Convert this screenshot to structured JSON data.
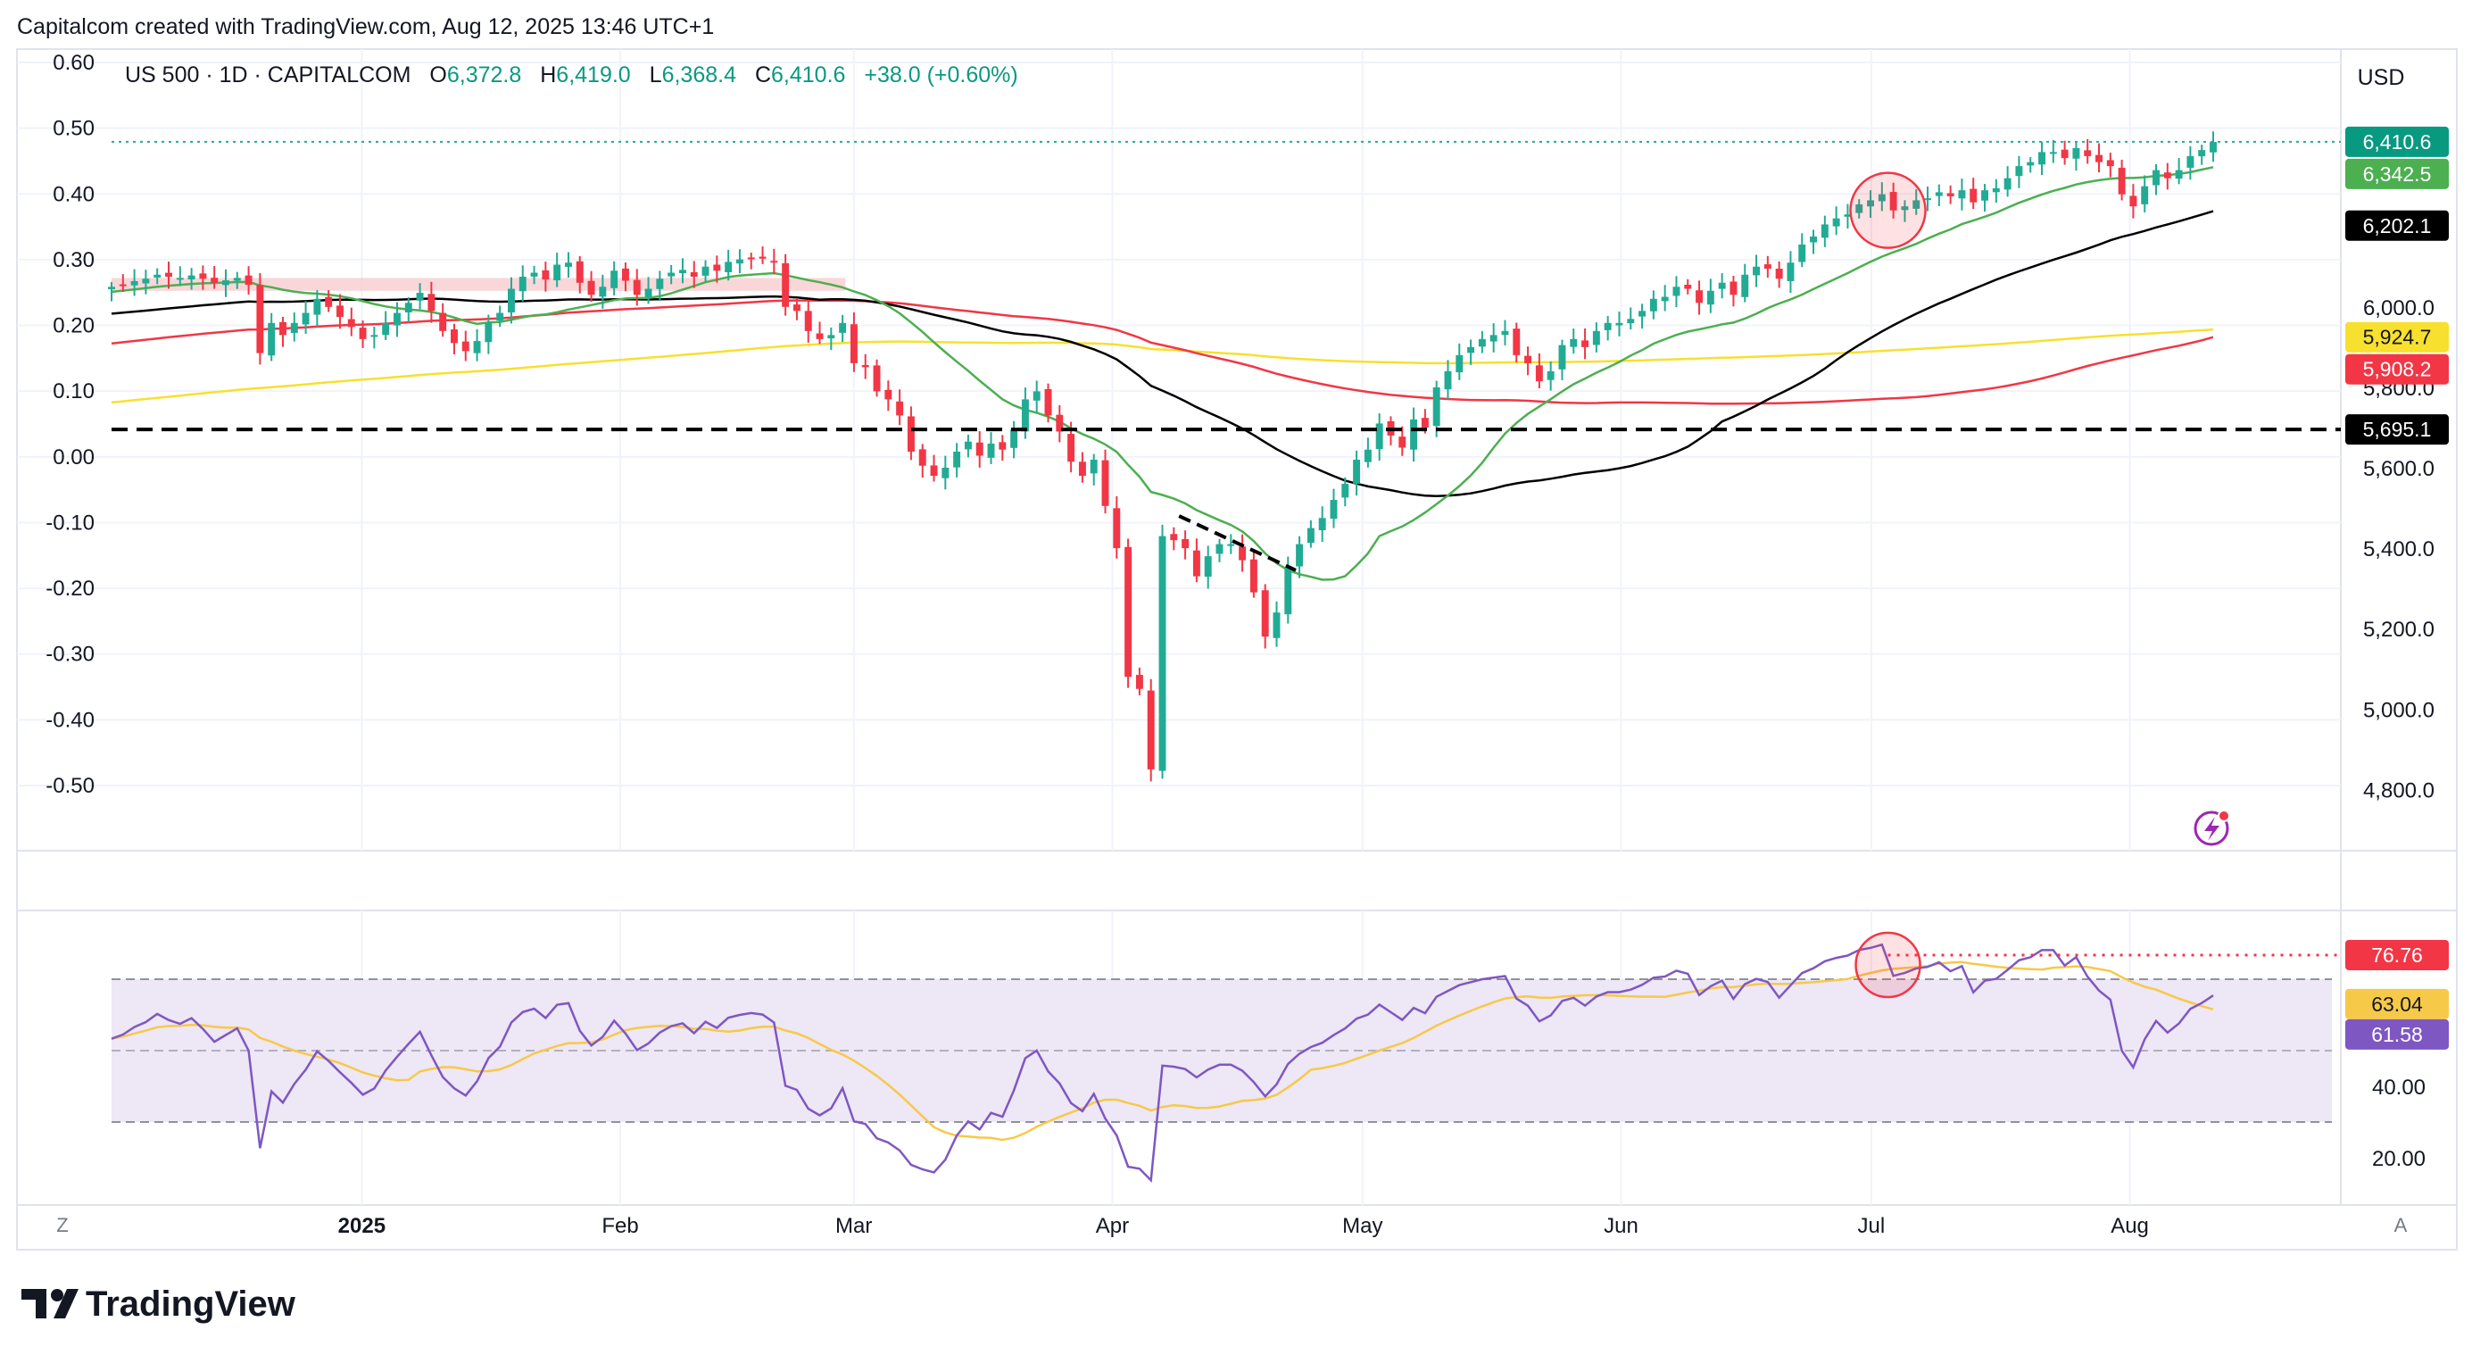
{
  "header": {
    "attribution": "Capitalcom created with TradingView.com, Aug 12, 2025 13:46 UTC+1"
  },
  "legend": {
    "symbol": "US 500 · 1D · CAPITALCOM",
    "o_label": "O",
    "o_value": "6,372.8",
    "h_label": "H",
    "h_value": "6,419.0",
    "l_label": "L",
    "l_value": "6,368.4",
    "c_label": "C",
    "c_value": "6,410.6",
    "change": "+38.0 (+0.60%)"
  },
  "currency": "USD",
  "footer": {
    "brand": "TradingView"
  },
  "buttons": {
    "z_label": "Z",
    "a_label": "A"
  },
  "colors": {
    "up": "#22ab94",
    "down": "#f23645",
    "sma20": "#4caf50",
    "sma50": "#000000",
    "sma100": "#f23645",
    "sma200": "#f7e02e",
    "rsi": "#7e57c2",
    "rsi_ma": "#f7c948",
    "rsi_band": "#ede7f6",
    "zone": "#f8cdd0",
    "accent": "#089981"
  },
  "chart_data": [
    {
      "type": "candlestick",
      "symbol": "US 500",
      "interval": "1D",
      "x_range": [
        "2024-12-02",
        "2025-08-11"
      ],
      "x_ticks": [
        "2025",
        "Feb",
        "Mar",
        "Apr",
        "May",
        "Jun",
        "Jul",
        "Aug"
      ],
      "right_axis": {
        "label": "USD",
        "ticks": [
          "6,000.0",
          "5,800.0",
          "5,600.0",
          "5,400.0",
          "5,200.0",
          "5,000.0",
          "4,800.0"
        ],
        "tick_values": [
          6000,
          5800,
          5600,
          5400,
          5200,
          5000,
          4800
        ],
        "range": [
          4700,
          6580
        ]
      },
      "left_axis": {
        "ticks": [
          "0.60",
          "0.50",
          "0.40",
          "0.30",
          "0.20",
          "0.10",
          "0.00",
          "-0.10",
          "-0.20",
          "-0.30",
          "-0.40",
          "-0.50"
        ],
        "tick_values": [
          0.6,
          0.5,
          0.4,
          0.3,
          0.2,
          0.1,
          0.0,
          -0.1,
          -0.2,
          -0.3,
          -0.4,
          -0.5
        ]
      },
      "price_labels": [
        {
          "text": "6,410.6",
          "value": 6410.6,
          "color": "#089981"
        },
        {
          "text": "6,342.5",
          "value": 6342.5,
          "color": "#4caf50"
        },
        {
          "text": "6,202.1",
          "value": 6202.1,
          "color": "#000000"
        },
        {
          "text": "5,924.7",
          "value": 5924.7,
          "color": "#f7e02e"
        },
        {
          "text": "5,908.2",
          "value": 5908.2,
          "color": "#f23645"
        },
        {
          "text": "5,695.1",
          "value": 5695.1,
          "color": "#000000"
        }
      ],
      "horizontal_lines": [
        {
          "value": 5695.1,
          "style": "dashed",
          "color": "#000000"
        },
        {
          "value": 6410.6,
          "style": "dotted",
          "color": "#22ab94"
        }
      ],
      "zones": [
        {
          "from_date": "2024-12-02",
          "to_date": "2025-02-28",
          "low": 6040,
          "high": 6072,
          "color": "#f8cdd0"
        }
      ],
      "annotations": [
        {
          "type": "circle",
          "date": "2025-07-03",
          "value": 6240
        },
        {
          "type": "dashed-trendline",
          "from": [
            "2025-04-09",
            5480
          ],
          "to": [
            "2025-04-23",
            5345
          ]
        }
      ],
      "closes": [
        6050,
        6055,
        6064,
        6070,
        6080,
        6075,
        6072,
        6078,
        6070,
        6060,
        6066,
        6072,
        6055,
        5885,
        5960,
        5930,
        5960,
        5985,
        6020,
        6000,
        5975,
        5950,
        5920,
        5930,
        5960,
        5985,
        6010,
        6035,
        5990,
        5940,
        5910,
        5890,
        5915,
        5960,
        5985,
        6045,
        6075,
        6085,
        6068,
        6105,
        6110,
        6060,
        6030,
        6050,
        6090,
        6065,
        6030,
        6045,
        6070,
        6085,
        6092,
        6075,
        6100,
        6090,
        6112,
        6118,
        6122,
        6120,
        6110,
        6000,
        5990,
        5940,
        5920,
        5930,
        5960,
        5860,
        5850,
        5790,
        5770,
        5730,
        5640,
        5605,
        5580,
        5600,
        5640,
        5665,
        5630,
        5660,
        5645,
        5695,
        5770,
        5790,
        5730,
        5690,
        5615,
        5580,
        5620,
        5505,
        5400,
        5080,
        5050,
        4850,
        5430,
        5420,
        5400,
        5330,
        5380,
        5410,
        5410,
        5370,
        5290,
        5180,
        5240,
        5350,
        5410,
        5450,
        5475,
        5520,
        5560,
        5620,
        5645,
        5710,
        5680,
        5650,
        5720,
        5700,
        5800,
        5840,
        5880,
        5900,
        5920,
        5930,
        5940,
        5880,
        5860,
        5815,
        5840,
        5905,
        5920,
        5900,
        5940,
        5960,
        5960,
        5970,
        5990,
        6020,
        6025,
        6050,
        6045,
        6010,
        6040,
        6060,
        6030,
        6080,
        6100,
        6095,
        6070,
        6110,
        6155,
        6175,
        6205,
        6220,
        6230,
        6255,
        6265,
        6280,
        6240,
        6250,
        6265,
        6270,
        6285,
        6275,
        6290,
        6260,
        6290,
        6295,
        6320,
        6350,
        6360,
        6385,
        6385,
        6370,
        6395,
        6375,
        6360,
        6350,
        6280,
        6250,
        6300,
        6340,
        6320,
        6340,
        6375,
        6390,
        6410
      ]
    },
    {
      "type": "line",
      "name": "RSI",
      "y_axis_ticks": [
        "40.00",
        "20.00"
      ],
      "y_tick_values": [
        40,
        20
      ],
      "bands": {
        "upper": 70,
        "middle": 50,
        "lower": 30
      },
      "value_labels": [
        {
          "text": "76.76",
          "value": 76.76,
          "color": "#f23645"
        },
        {
          "text": "63.04",
          "value": 63.04,
          "color": "#f7c948"
        },
        {
          "text": "61.58",
          "value": 61.58,
          "color": "#7e57c2"
        }
      ],
      "horizontal_lines": [
        {
          "from_date": "2025-07-03",
          "value": 76.76,
          "style": "dotted",
          "color": "#f23645"
        }
      ],
      "annotations": [
        {
          "type": "circle",
          "date": "2025-07-03",
          "value": 74
        }
      ]
    }
  ]
}
